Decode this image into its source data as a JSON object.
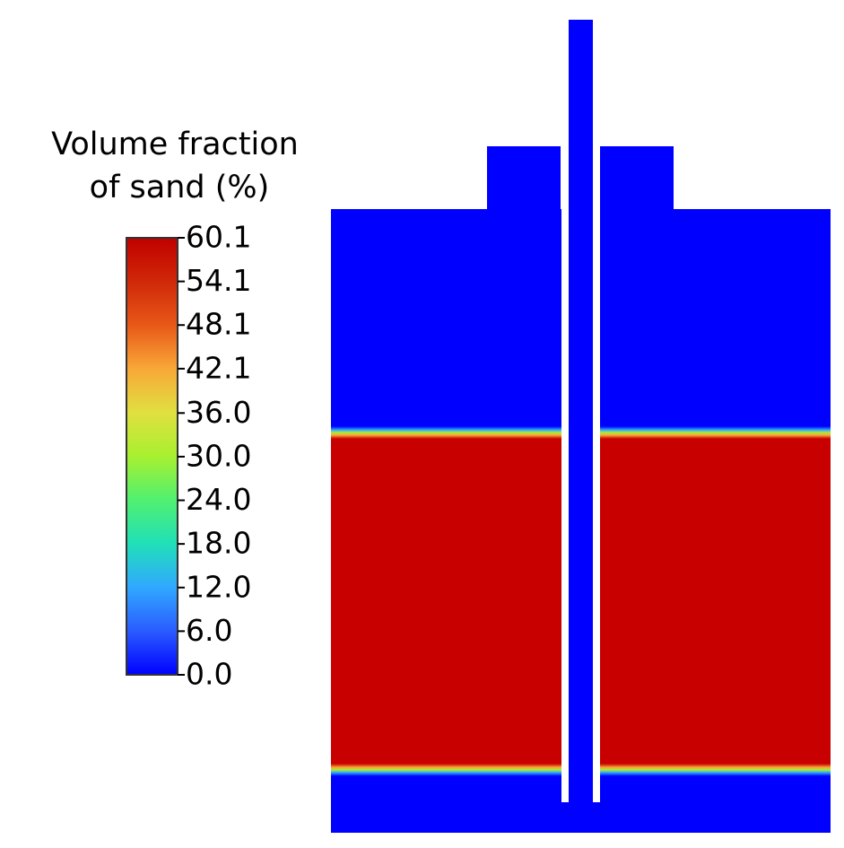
{
  "colorbar": {
    "title": [
      "Volume fraction",
      "of sand (%)"
    ],
    "lim": [
      0,
      60.1
    ],
    "ticks": [
      60.1,
      54.1,
      48.1,
      42.1,
      {
        "value": 36,
        "label": "36.0"
      },
      {
        "value": 30,
        "label": "30.0"
      },
      {
        "value": 24,
        "label": "24.0"
      },
      {
        "value": 18,
        "label": "18.0"
      },
      {
        "value": 12,
        "label": "12.0"
      },
      {
        "value": 6,
        "label": "6.0"
      },
      {
        "value": 0,
        "label": "0.0"
      }
    ]
  }
}
